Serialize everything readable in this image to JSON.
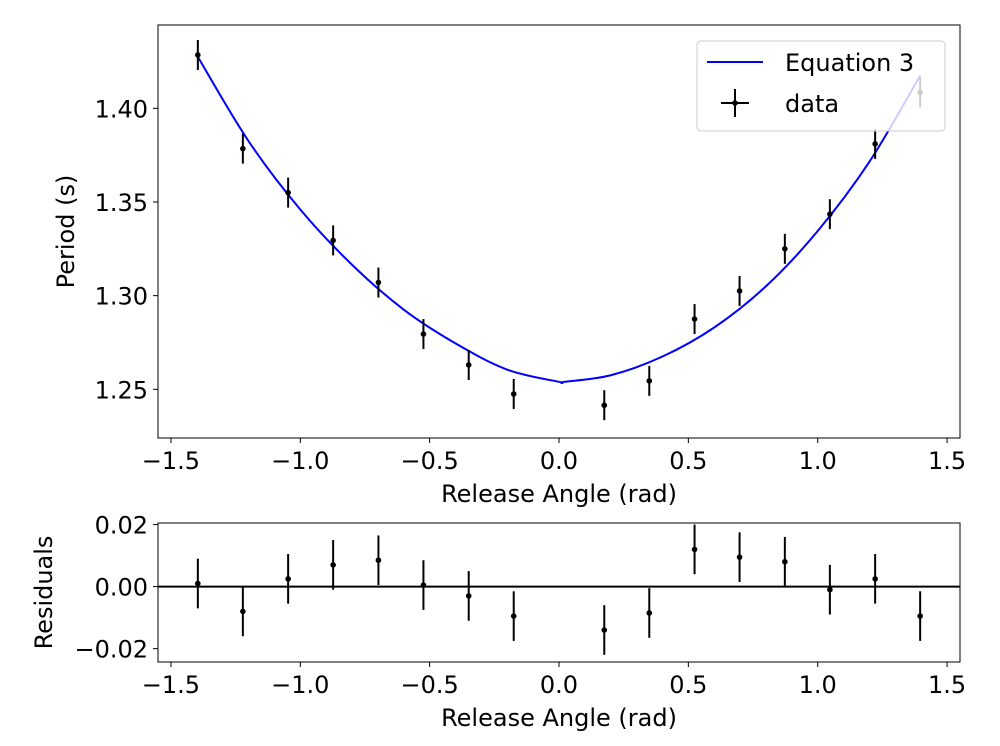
{
  "chart_data": [
    {
      "type": "scatter",
      "panel": "main",
      "xlabel": "Release Angle (rad)",
      "ylabel": "Period (s)",
      "xlim": [
        -1.55,
        1.55
      ],
      "ylim": [
        1.224,
        1.4445
      ],
      "x_ticks": [
        -1.5,
        -1.0,
        -0.5,
        0.0,
        0.5,
        1.0,
        1.5
      ],
      "x_tick_labels": [
        "−1.5",
        "−1.0",
        "−0.5",
        "0.0",
        "0.5",
        "1.0",
        "1.5"
      ],
      "y_ticks": [
        1.25,
        1.3,
        1.35,
        1.4
      ],
      "y_tick_labels": [
        "1.25",
        "1.30",
        "1.35",
        "1.40"
      ],
      "grid": false,
      "legend_position": "top-right",
      "legend": [
        {
          "label": "Equation 3",
          "kind": "line",
          "color": "#0000ff"
        },
        {
          "label": "data",
          "kind": "errorbar",
          "color": "#000000"
        }
      ],
      "series": [
        {
          "name": "Equation 3",
          "kind": "line",
          "color": "#0000ff",
          "x": [
            -1.396,
            -1.2,
            -1.0,
            -0.8,
            -0.6,
            -0.4,
            -0.2,
            0.0,
            0.02,
            0.2,
            0.4,
            0.6,
            0.8,
            1.0,
            1.2,
            1.396
          ],
          "y": [
            1.4275,
            1.3825,
            1.346,
            1.3165,
            1.2925,
            1.2745,
            1.2605,
            1.254,
            1.254,
            1.2575,
            1.2675,
            1.283,
            1.305,
            1.3345,
            1.3715,
            1.4175
          ]
        },
        {
          "name": "data",
          "kind": "errorbar",
          "color": "#000000",
          "x": [
            -1.396,
            -1.222,
            -1.047,
            -0.873,
            -0.698,
            -0.524,
            -0.349,
            -0.175,
            0.175,
            0.349,
            0.524,
            0.698,
            0.873,
            1.047,
            1.222,
            1.396
          ],
          "y": [
            1.4285,
            1.3785,
            1.355,
            1.3295,
            1.307,
            1.2795,
            1.263,
            1.2475,
            1.2415,
            1.2545,
            1.2875,
            1.3025,
            1.325,
            1.3435,
            1.381,
            1.4085
          ],
          "yerr": [
            0.008,
            0.008,
            0.008,
            0.008,
            0.008,
            0.008,
            0.008,
            0.008,
            0.008,
            0.008,
            0.008,
            0.008,
            0.008,
            0.008,
            0.008,
            0.008
          ]
        }
      ]
    },
    {
      "type": "scatter",
      "panel": "residuals",
      "xlabel": "Release Angle (rad)",
      "ylabel": "Residuals",
      "xlim": [
        -1.55,
        1.55
      ],
      "ylim": [
        -0.0243,
        0.0205
      ],
      "x_ticks": [
        -1.5,
        -1.0,
        -0.5,
        0.0,
        0.5,
        1.0,
        1.5
      ],
      "x_tick_labels": [
        "−1.5",
        "−1.0",
        "−0.5",
        "0.0",
        "0.5",
        "1.0",
        "1.5"
      ],
      "y_ticks": [
        -0.02,
        0.0,
        0.02
      ],
      "y_tick_labels": [
        "−0.02",
        "0.00",
        "0.02"
      ],
      "grid": false,
      "zero_line": true,
      "series": [
        {
          "kind": "errorbar",
          "color": "#000000",
          "x": [
            -1.396,
            -1.222,
            -1.047,
            -0.873,
            -0.698,
            -0.524,
            -0.349,
            -0.175,
            0.175,
            0.349,
            0.524,
            0.698,
            0.873,
            1.047,
            1.222,
            1.396
          ],
          "y": [
            0.001,
            -0.008,
            0.0025,
            0.007,
            0.0085,
            0.0005,
            -0.003,
            -0.0095,
            -0.014,
            -0.0085,
            0.012,
            0.0095,
            0.008,
            -0.001,
            0.0025,
            -0.0095
          ],
          "yerr": [
            0.008,
            0.008,
            0.008,
            0.008,
            0.008,
            0.008,
            0.008,
            0.008,
            0.008,
            0.008,
            0.008,
            0.008,
            0.008,
            0.008,
            0.008,
            0.008
          ]
        }
      ]
    }
  ]
}
